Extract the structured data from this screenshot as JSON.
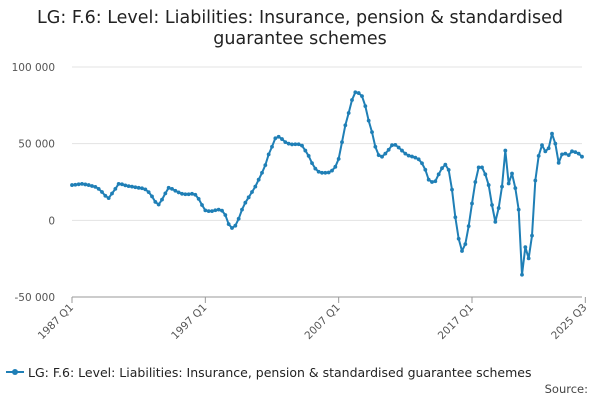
{
  "chart_data": {
    "type": "line",
    "title": "LG: F.6: Level: Liabilities: Insurance, pension & standardised guarantee schemes",
    "xlabel": "",
    "ylabel": "",
    "ylim": [
      -50000,
      100000
    ],
    "y_ticks": [
      -50000,
      0,
      50000,
      100000
    ],
    "y_tick_labels": [
      "-50 000",
      "0",
      "50 000",
      "100 000"
    ],
    "x_ticks": [
      {
        "label": "1987 Q1",
        "index": 0
      },
      {
        "label": "1997 Q1",
        "index": 40
      },
      {
        "label": "2007 Q1",
        "index": 80
      },
      {
        "label": "2017 Q1",
        "index": 120
      },
      {
        "label": "2025 Q3",
        "index": 154
      }
    ],
    "grid": "horizontal",
    "legend_position": "bottom",
    "series": [
      {
        "name": "LG: F.6: Level: Liabilities: Insurance, pension & standardised guarantee schemes",
        "color": "#1f7fb6",
        "values": [
          23000,
          23200,
          23500,
          23800,
          23400,
          23000,
          22400,
          21800,
          20500,
          18500,
          16000,
          14500,
          17500,
          20500,
          23800,
          23500,
          22800,
          22300,
          22000,
          21600,
          21200,
          20900,
          20200,
          18400,
          15600,
          12000,
          10300,
          13500,
          17600,
          21200,
          20500,
          19300,
          18200,
          17300,
          17000,
          17000,
          17300,
          16700,
          14000,
          10000,
          6500,
          6000,
          6000,
          6600,
          7000,
          6300,
          3500,
          -2500,
          -5000,
          -3500,
          1000,
          7000,
          11500,
          15000,
          18500,
          22000,
          26500,
          31000,
          36000,
          43000,
          48000,
          53500,
          54500,
          53000,
          51000,
          50000,
          49500,
          49600,
          49600,
          48700,
          45500,
          42000,
          37300,
          33700,
          31700,
          31000,
          31000,
          31200,
          32400,
          34900,
          40100,
          51000,
          62000,
          70000,
          78500,
          83500,
          83000,
          81000,
          74500,
          65000,
          57500,
          48000,
          42500,
          41500,
          43500,
          46000,
          49000,
          49200,
          47500,
          45500,
          43500,
          42200,
          41600,
          40900,
          39800,
          37200,
          33000,
          26500,
          25000,
          25500,
          30000,
          34000,
          36300,
          32900,
          20000,
          2000,
          -12000,
          -20000,
          -15500,
          -3800,
          11000,
          25000,
          34500,
          34500,
          30000,
          23000,
          10000,
          -1000,
          8000,
          22000,
          45500,
          24000,
          30500,
          21000,
          7000,
          -35500,
          -17500,
          -24800,
          -10000,
          26000,
          42000,
          49000,
          45000,
          47000,
          56500,
          50000,
          37500,
          43000,
          43500,
          42500,
          45000,
          44500,
          43500,
          41500
        ]
      }
    ]
  },
  "legend": {
    "label": "LG: F.6: Level: Liabilities: Insurance, pension & standardised guarantee schemes"
  },
  "source": {
    "label": "Source:"
  }
}
